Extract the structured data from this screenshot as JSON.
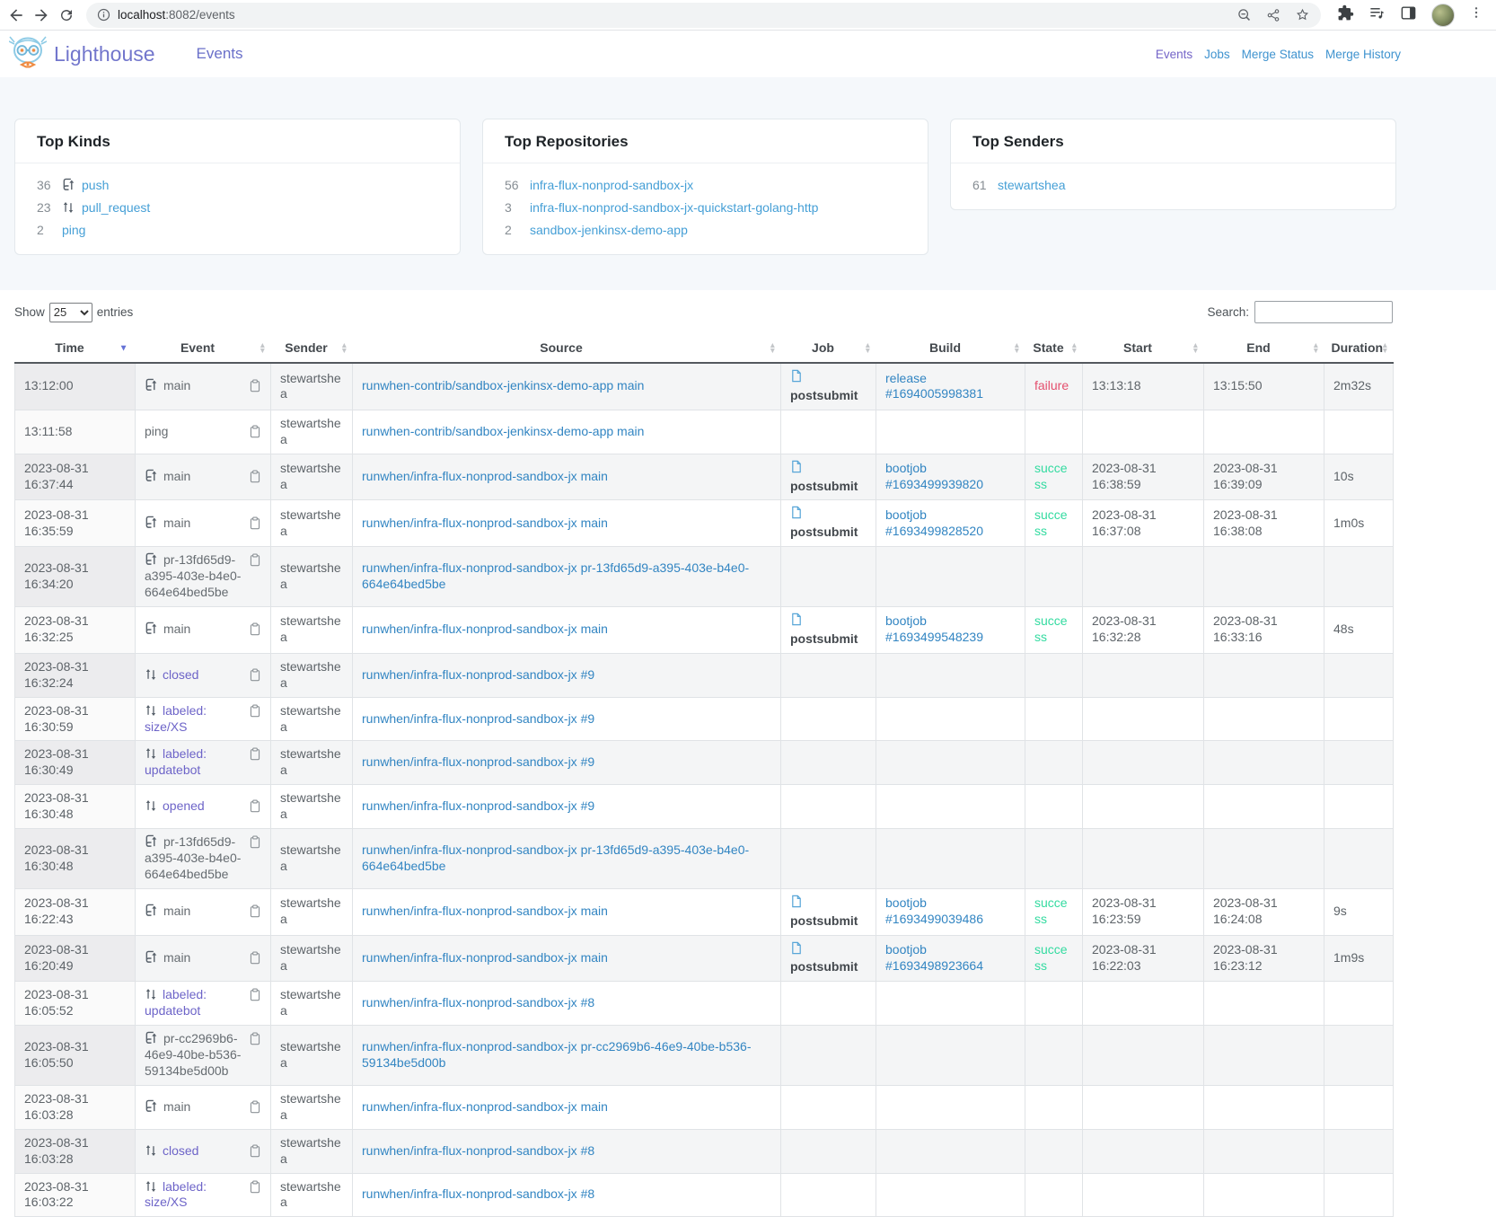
{
  "browser": {
    "url_primary": "localhost",
    "url_secondary": ":8082/events"
  },
  "header": {
    "brand": "Lighthouse",
    "primary_nav": "Events",
    "nav": [
      {
        "label": "Events",
        "active": true
      },
      {
        "label": "Jobs",
        "active": false
      },
      {
        "label": "Merge Status",
        "active": false
      },
      {
        "label": "Merge History",
        "active": false
      }
    ]
  },
  "cards": [
    {
      "title": "Top Kinds",
      "items": [
        {
          "count": "36",
          "icon": "push",
          "label": "push"
        },
        {
          "count": "23",
          "icon": "pull-request",
          "label": "pull_request"
        },
        {
          "count": "2",
          "icon": "",
          "label": "ping"
        }
      ]
    },
    {
      "title": "Top Repositories",
      "items": [
        {
          "count": "56",
          "icon": "",
          "label": "infra-flux-nonprod-sandbox-jx"
        },
        {
          "count": "3",
          "icon": "",
          "label": "infra-flux-nonprod-sandbox-jx-quickstart-golang-http"
        },
        {
          "count": "2",
          "icon": "",
          "label": "sandbox-jenkinsx-demo-app"
        }
      ]
    },
    {
      "title": "Top Senders",
      "items": [
        {
          "count": "61",
          "icon": "",
          "label": "stewartshea"
        }
      ]
    }
  ],
  "table": {
    "length_label_before": "Show",
    "length_value": "25",
    "length_label_after": "entries",
    "search_label": "Search:",
    "search_value": "",
    "columns": [
      {
        "label": "Time",
        "sort": "desc"
      },
      {
        "label": "Event",
        "sort": "both"
      },
      {
        "label": "Sender",
        "sort": "both"
      },
      {
        "label": "Source",
        "sort": "both"
      },
      {
        "label": "Job",
        "sort": "both"
      },
      {
        "label": "Build",
        "sort": "both"
      },
      {
        "label": "State",
        "sort": "both"
      },
      {
        "label": "Start",
        "sort": "both"
      },
      {
        "label": "End",
        "sort": "both"
      },
      {
        "label": "Duration",
        "sort": "both"
      }
    ],
    "rows": [
      {
        "time": "13:12:00",
        "event": {
          "icon": "push",
          "label": "main",
          "style": "plain"
        },
        "sender": "stewartshea",
        "source": "runwhen-contrib/sandbox-jenkinsx-demo-app main",
        "job": "postsubmit",
        "build": "release #1694005998381",
        "state": "failure",
        "start": "13:13:18",
        "end": "13:15:50",
        "duration": "2m32s"
      },
      {
        "time": "13:11:58",
        "event": {
          "icon": "",
          "label": "ping",
          "style": "plain"
        },
        "sender": "stewartshea",
        "source": "runwhen-contrib/sandbox-jenkinsx-demo-app main",
        "job": "",
        "build": "",
        "state": "",
        "start": "",
        "end": "",
        "duration": ""
      },
      {
        "time": "2023-08-31 16:37:44",
        "event": {
          "icon": "push",
          "label": "main",
          "style": "plain"
        },
        "sender": "stewartshea",
        "source": "runwhen/infra-flux-nonprod-sandbox-jx main",
        "job": "postsubmit",
        "build": "bootjob #1693499939820",
        "state": "success",
        "start": "2023-08-31 16:38:59",
        "end": "2023-08-31 16:39:09",
        "duration": "10s"
      },
      {
        "time": "2023-08-31 16:35:59",
        "event": {
          "icon": "push",
          "label": "main",
          "style": "plain"
        },
        "sender": "stewartshea",
        "source": "runwhen/infra-flux-nonprod-sandbox-jx main",
        "job": "postsubmit",
        "build": "bootjob #1693499828520",
        "state": "success",
        "start": "2023-08-31 16:37:08",
        "end": "2023-08-31 16:38:08",
        "duration": "1m0s"
      },
      {
        "time": "2023-08-31 16:34:20",
        "event": {
          "icon": "push",
          "label": "pr-13fd65d9-a395-403e-b4e0-664e64bed5be",
          "style": "plain"
        },
        "sender": "stewartshea",
        "source": "runwhen/infra-flux-nonprod-sandbox-jx pr-13fd65d9-a395-403e-b4e0-664e64bed5be",
        "job": "",
        "build": "",
        "state": "",
        "start": "",
        "end": "",
        "duration": ""
      },
      {
        "time": "2023-08-31 16:32:25",
        "event": {
          "icon": "push",
          "label": "main",
          "style": "plain"
        },
        "sender": "stewartshea",
        "source": "runwhen/infra-flux-nonprod-sandbox-jx main",
        "job": "postsubmit",
        "build": "bootjob #1693499548239",
        "state": "success",
        "start": "2023-08-31 16:32:28",
        "end": "2023-08-31 16:33:16",
        "duration": "48s"
      },
      {
        "time": "2023-08-31 16:32:24",
        "event": {
          "icon": "pull-request",
          "label": "closed",
          "style": "link"
        },
        "sender": "stewartshea",
        "source": "runwhen/infra-flux-nonprod-sandbox-jx #9",
        "job": "",
        "build": "",
        "state": "",
        "start": "",
        "end": "",
        "duration": ""
      },
      {
        "time": "2023-08-31 16:30:59",
        "event": {
          "icon": "pull-request",
          "label": "labeled: size/XS",
          "style": "link"
        },
        "sender": "stewartshea",
        "source": "runwhen/infra-flux-nonprod-sandbox-jx #9",
        "job": "",
        "build": "",
        "state": "",
        "start": "",
        "end": "",
        "duration": ""
      },
      {
        "time": "2023-08-31 16:30:49",
        "event": {
          "icon": "pull-request",
          "label": "labeled: updatebot",
          "style": "link"
        },
        "sender": "stewartshea",
        "source": "runwhen/infra-flux-nonprod-sandbox-jx #9",
        "job": "",
        "build": "",
        "state": "",
        "start": "",
        "end": "",
        "duration": ""
      },
      {
        "time": "2023-08-31 16:30:48",
        "event": {
          "icon": "pull-request",
          "label": "opened",
          "style": "link"
        },
        "sender": "stewartshea",
        "source": "runwhen/infra-flux-nonprod-sandbox-jx #9",
        "job": "",
        "build": "",
        "state": "",
        "start": "",
        "end": "",
        "duration": ""
      },
      {
        "time": "2023-08-31 16:30:48",
        "event": {
          "icon": "push",
          "label": "pr-13fd65d9-a395-403e-b4e0-664e64bed5be",
          "style": "plain"
        },
        "sender": "stewartshea",
        "source": "runwhen/infra-flux-nonprod-sandbox-jx pr-13fd65d9-a395-403e-b4e0-664e64bed5be",
        "job": "",
        "build": "",
        "state": "",
        "start": "",
        "end": "",
        "duration": ""
      },
      {
        "time": "2023-08-31 16:22:43",
        "event": {
          "icon": "push",
          "label": "main",
          "style": "plain"
        },
        "sender": "stewartshea",
        "source": "runwhen/infra-flux-nonprod-sandbox-jx main",
        "job": "postsubmit",
        "build": "bootjob #1693499039486",
        "state": "success",
        "start": "2023-08-31 16:23:59",
        "end": "2023-08-31 16:24:08",
        "duration": "9s"
      },
      {
        "time": "2023-08-31 16:20:49",
        "event": {
          "icon": "push",
          "label": "main",
          "style": "plain"
        },
        "sender": "stewartshea",
        "source": "runwhen/infra-flux-nonprod-sandbox-jx main",
        "job": "postsubmit",
        "build": "bootjob #1693498923664",
        "state": "success",
        "start": "2023-08-31 16:22:03",
        "end": "2023-08-31 16:23:12",
        "duration": "1m9s"
      },
      {
        "time": "2023-08-31 16:05:52",
        "event": {
          "icon": "pull-request",
          "label": "labeled: updatebot",
          "style": "link"
        },
        "sender": "stewartshea",
        "source": "runwhen/infra-flux-nonprod-sandbox-jx #8",
        "job": "",
        "build": "",
        "state": "",
        "start": "",
        "end": "",
        "duration": ""
      },
      {
        "time": "2023-08-31 16:05:50",
        "event": {
          "icon": "push",
          "label": "pr-cc2969b6-46e9-40be-b536-59134be5d00b",
          "style": "plain"
        },
        "sender": "stewartshea",
        "source": "runwhen/infra-flux-nonprod-sandbox-jx pr-cc2969b6-46e9-40be-b536-59134be5d00b",
        "job": "",
        "build": "",
        "state": "",
        "start": "",
        "end": "",
        "duration": ""
      },
      {
        "time": "2023-08-31 16:03:28",
        "event": {
          "icon": "push",
          "label": "main",
          "style": "plain"
        },
        "sender": "stewartshea",
        "source": "runwhen/infra-flux-nonprod-sandbox-jx main",
        "job": "",
        "build": "",
        "state": "",
        "start": "",
        "end": "",
        "duration": ""
      },
      {
        "time": "2023-08-31 16:03:28",
        "event": {
          "icon": "pull-request",
          "label": "closed",
          "style": "link"
        },
        "sender": "stewartshea",
        "source": "runwhen/infra-flux-nonprod-sandbox-jx #8",
        "job": "",
        "build": "",
        "state": "",
        "start": "",
        "end": "",
        "duration": ""
      },
      {
        "time": "2023-08-31 16:03:22",
        "event": {
          "icon": "pull-request",
          "label": "labeled: size/XS",
          "style": "link"
        },
        "sender": "stewartshea",
        "source": "runwhen/infra-flux-nonprod-sandbox-jx #8",
        "job": "",
        "build": "",
        "state": "",
        "start": "",
        "end": "",
        "duration": ""
      }
    ]
  },
  "colors": {
    "brand_purple": "#7276cc",
    "nav_blue": "#3f93cf",
    "link_blue": "#3285c2",
    "card_link_blue": "#459fd6",
    "event_link_purple": "#6d64c8",
    "success": "#33dba0",
    "failure": "#e4506e",
    "sort_active": "#6673d6"
  }
}
